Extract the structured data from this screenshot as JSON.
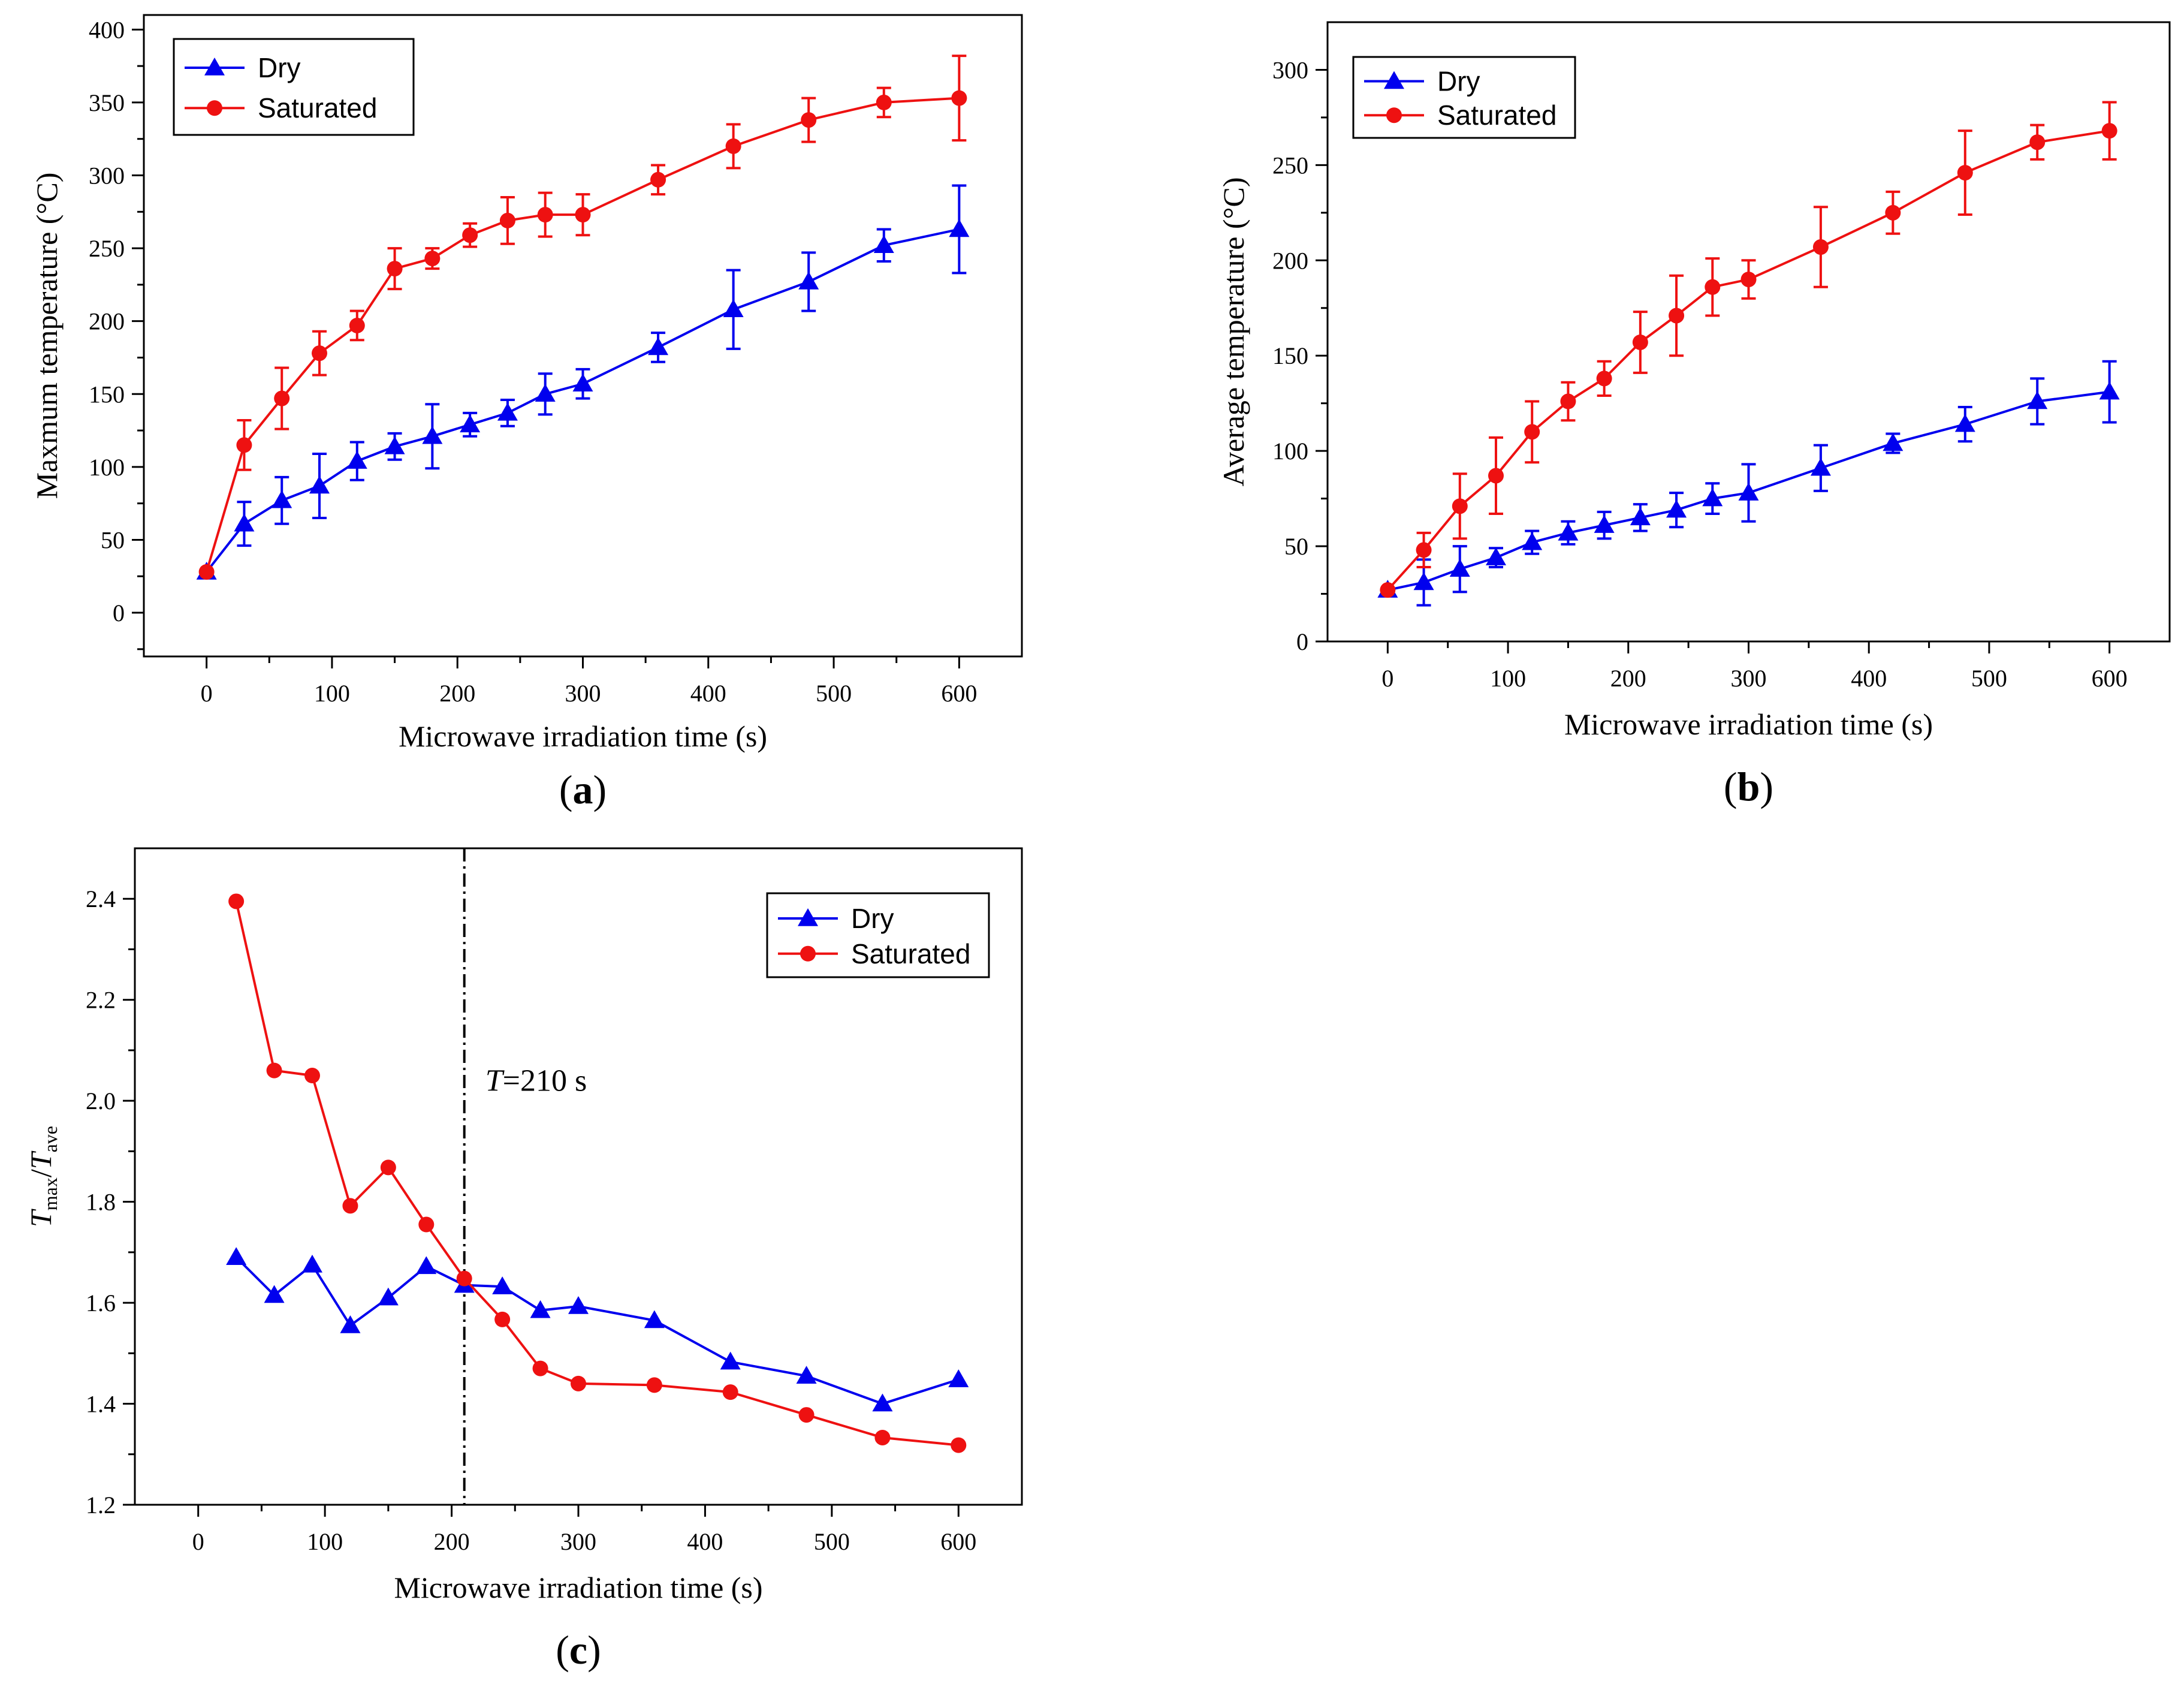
{
  "colors": {
    "dry": "#0000ee",
    "saturated": "#ee1111"
  },
  "chart_data": [
    {
      "type": "line",
      "panel": "(a)",
      "panel_letter": "a",
      "xlabel": "Microwave irradiation time (s)",
      "ylabel": "Maxmum temperature (°C)",
      "xlim": [
        -50,
        650
      ],
      "ylim": [
        -30,
        410
      ],
      "xticks": [
        0,
        100,
        200,
        300,
        400,
        500,
        600
      ],
      "yticks": [
        0,
        50,
        100,
        150,
        200,
        250,
        300,
        350,
        400
      ],
      "legend": {
        "position": "top-left"
      },
      "series": [
        {
          "name": "Dry",
          "key": "dry",
          "marker": "triangle",
          "x": [
            0,
            30,
            60,
            90,
            120,
            150,
            180,
            210,
            240,
            270,
            300,
            360,
            420,
            480,
            540,
            600
          ],
          "y": [
            28,
            61,
            77,
            87,
            104,
            114,
            121,
            129,
            137,
            150,
            157,
            182,
            208,
            227,
            252,
            263
          ],
          "err": [
            0,
            15,
            16,
            22,
            13,
            9,
            22,
            8,
            9,
            14,
            10,
            10,
            27,
            20,
            11,
            30
          ]
        },
        {
          "name": "Saturated",
          "key": "saturated",
          "marker": "circle",
          "x": [
            0,
            30,
            60,
            90,
            120,
            150,
            180,
            210,
            240,
            270,
            300,
            360,
            420,
            480,
            540,
            600
          ],
          "y": [
            28,
            115,
            147,
            178,
            197,
            236,
            243,
            259,
            269,
            273,
            273,
            297,
            320,
            338,
            350,
            353
          ],
          "err": [
            0,
            17,
            21,
            15,
            10,
            14,
            7,
            8,
            16,
            15,
            14,
            10,
            15,
            15,
            10,
            29
          ]
        }
      ]
    },
    {
      "type": "line",
      "panel": "(b)",
      "panel_letter": "b",
      "xlabel": "Microwave irradiation time (s)",
      "ylabel": "Average temperature (°C)",
      "xlim": [
        -50,
        650
      ],
      "ylim": [
        0,
        325
      ],
      "xticks": [
        0,
        100,
        200,
        300,
        400,
        500,
        600
      ],
      "yticks": [
        0,
        50,
        100,
        150,
        200,
        250,
        300
      ],
      "legend": {
        "position": "top-left"
      },
      "series": [
        {
          "name": "Dry",
          "key": "dry",
          "marker": "triangle",
          "x": [
            0,
            30,
            60,
            90,
            120,
            150,
            180,
            210,
            240,
            270,
            300,
            360,
            420,
            480,
            540,
            600
          ],
          "y": [
            27,
            31,
            38,
            44,
            52,
            57,
            61,
            65,
            69,
            75,
            78,
            91,
            104,
            114,
            126,
            131
          ],
          "err": [
            0,
            12,
            12,
            5,
            6,
            6,
            7,
            7,
            9,
            8,
            15,
            12,
            5,
            9,
            12,
            16
          ]
        },
        {
          "name": "Saturated",
          "key": "saturated",
          "marker": "circle",
          "x": [
            0,
            30,
            60,
            90,
            120,
            150,
            180,
            210,
            240,
            270,
            300,
            360,
            420,
            480,
            540,
            600
          ],
          "y": [
            27,
            48,
            71,
            87,
            110,
            126,
            138,
            157,
            171,
            186,
            190,
            207,
            225,
            246,
            262,
            268
          ],
          "err": [
            0,
            9,
            17,
            20,
            16,
            10,
            9,
            16,
            21,
            15,
            10,
            21,
            11,
            22,
            9,
            15
          ]
        }
      ]
    },
    {
      "type": "line",
      "panel": "(c)",
      "panel_letter": "c",
      "xlabel": "Microwave irradiation time (s)",
      "ylabel_main1": "T",
      "ylabel_sub1": "max",
      "ylabel_sep": "/",
      "ylabel_main2": "T",
      "ylabel_sub2": "ave",
      "xlim": [
        -50,
        650
      ],
      "ylim": [
        1.2,
        2.5
      ],
      "xticks": [
        0,
        100,
        200,
        300,
        400,
        500,
        600
      ],
      "yticks": [
        1.2,
        1.4,
        1.6,
        1.8,
        2.0,
        2.2,
        2.4
      ],
      "legend": {
        "position": "top-right"
      },
      "annotation": {
        "x": 210,
        "label_italic": "T",
        "label_rest": "=210 s"
      },
      "series": [
        {
          "name": "Dry",
          "key": "dry",
          "marker": "triangle",
          "x": [
            30,
            60,
            90,
            120,
            150,
            180,
            210,
            240,
            270,
            300,
            360,
            420,
            480,
            540,
            600
          ],
          "y": [
            1.69,
            1.615,
            1.675,
            1.555,
            1.61,
            1.672,
            1.635,
            1.632,
            1.585,
            1.593,
            1.565,
            1.483,
            1.455,
            1.4,
            1.448
          ]
        },
        {
          "name": "Saturated",
          "key": "saturated",
          "marker": "circle",
          "x": [
            30,
            60,
            90,
            120,
            150,
            180,
            210,
            240,
            270,
            300,
            360,
            420,
            480,
            540,
            600
          ],
          "y": [
            2.395,
            2.06,
            2.05,
            1.792,
            1.868,
            1.755,
            1.648,
            1.567,
            1.47,
            1.44,
            1.437,
            1.423,
            1.378,
            1.333,
            1.318
          ]
        }
      ]
    }
  ]
}
